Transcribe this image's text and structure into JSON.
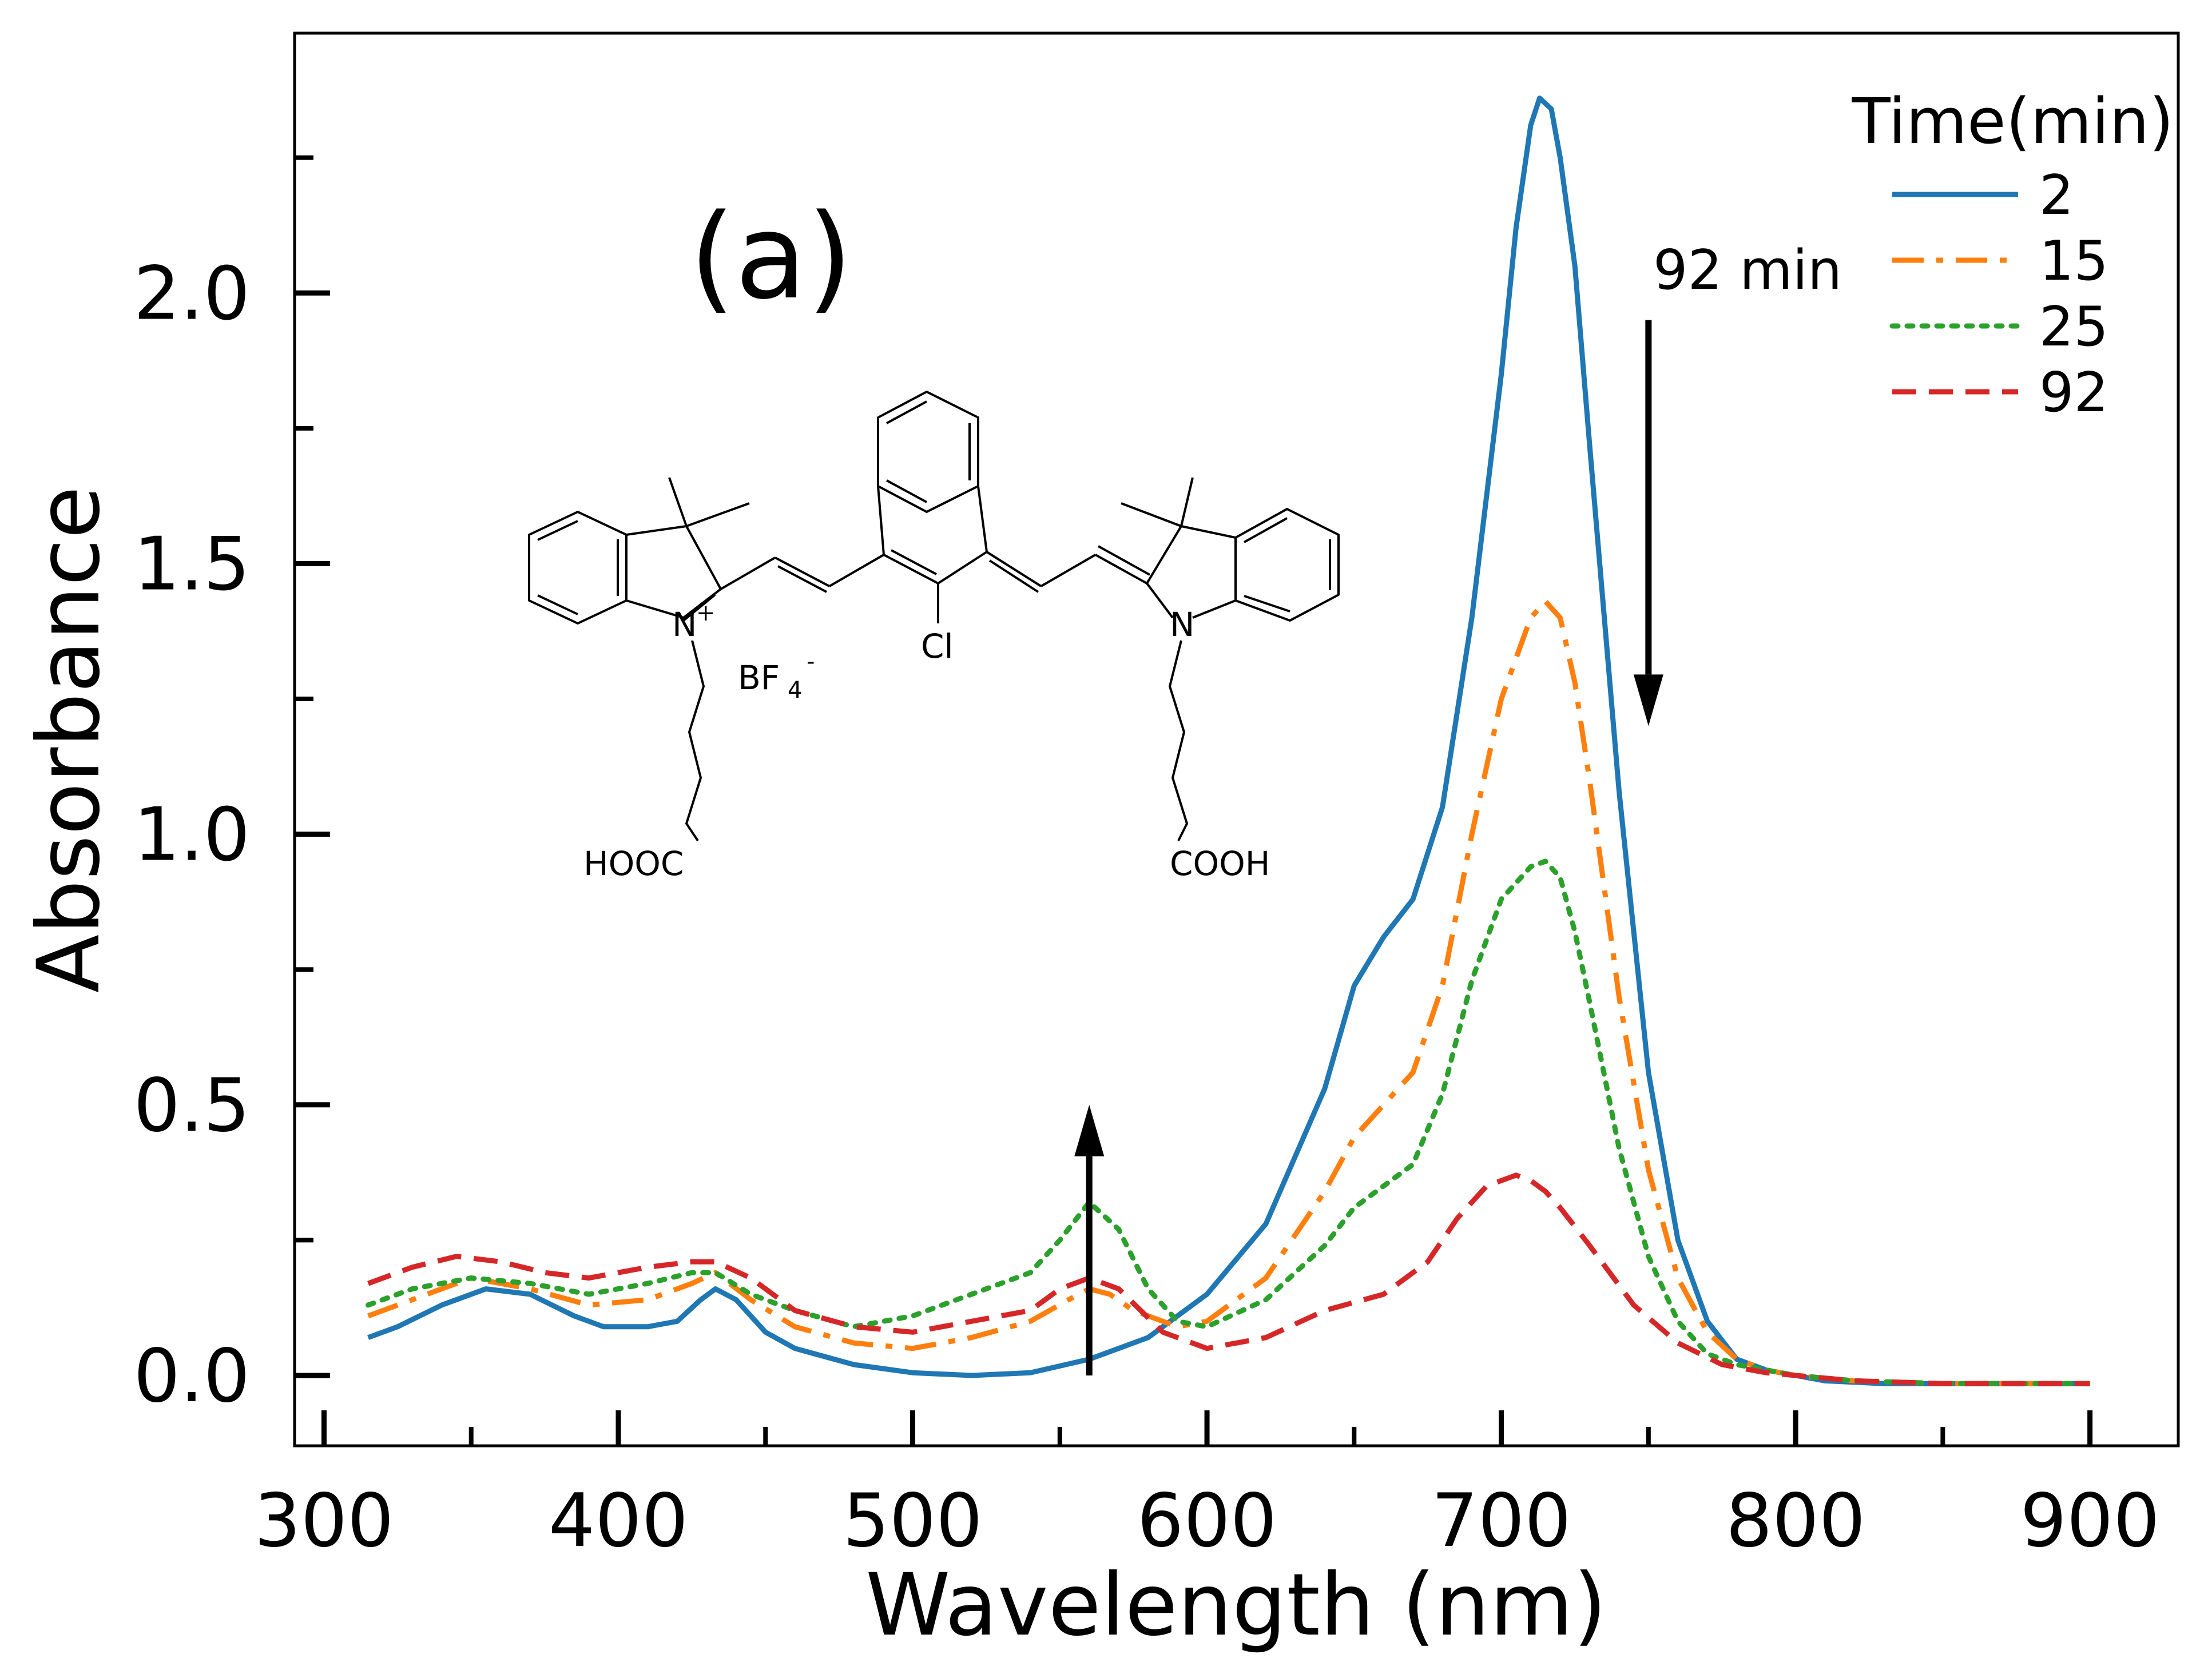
{
  "chart_data": {
    "type": "line",
    "panel_label": "(a)",
    "xlabel": "Wavelength (nm)",
    "ylabel": "Absorbance",
    "xlim": [
      290,
      930
    ],
    "ylim": [
      -0.13,
      2.48
    ],
    "x_ticks": [
      300,
      400,
      500,
      600,
      700,
      800,
      900
    ],
    "y_ticks": [
      0.0,
      0.5,
      1.0,
      1.5,
      2.0
    ],
    "x_tick_labels": [
      "300",
      "400",
      "500",
      "600",
      "700",
      "800",
      "900"
    ],
    "y_tick_labels": [
      "0.0",
      "0.5",
      "1.0",
      "1.5",
      "2.0"
    ],
    "legend": {
      "title": "Time(min)",
      "location": "top-right"
    },
    "annotations": [
      {
        "text": "92 min",
        "arrow": "down",
        "x": 750,
        "y_from": 1.95,
        "y_to": 1.2
      },
      {
        "text": "",
        "arrow": "up",
        "x": 560,
        "y_from": 0.0,
        "y_to": 0.5
      }
    ],
    "inset_structure_labels": {
      "n_plus": "N",
      "plus": "+",
      "n": "N",
      "cl": "Cl",
      "bf": "BF",
      "bf_sub": "4",
      "bf_sup": "-",
      "hooc": "HOOC",
      "cooh": "COOH"
    },
    "series": [
      {
        "name": "2",
        "color": "#1f77b4",
        "linestyle": "solid",
        "x": [
          315,
          325,
          340,
          355,
          370,
          385,
          395,
          410,
          420,
          428,
          433,
          440,
          450,
          460,
          480,
          500,
          520,
          540,
          560,
          580,
          600,
          620,
          640,
          650,
          660,
          670,
          680,
          690,
          700,
          705,
          710,
          713,
          717,
          720,
          725,
          730,
          740,
          750,
          760,
          770,
          780,
          790,
          800,
          810,
          830,
          860,
          900
        ],
        "y": [
          0.07,
          0.09,
          0.13,
          0.16,
          0.15,
          0.11,
          0.09,
          0.09,
          0.1,
          0.14,
          0.16,
          0.14,
          0.08,
          0.05,
          0.02,
          0.005,
          0.0,
          0.005,
          0.03,
          0.07,
          0.15,
          0.28,
          0.53,
          0.72,
          0.81,
          0.88,
          1.05,
          1.4,
          1.85,
          2.12,
          2.31,
          2.36,
          2.34,
          2.25,
          2.05,
          1.72,
          1.08,
          0.56,
          0.25,
          0.1,
          0.03,
          0.01,
          0.0,
          -0.01,
          -0.015,
          -0.015,
          -0.015
        ]
      },
      {
        "name": "15",
        "color": "#ff7f0e",
        "linestyle": "dashdot",
        "x": [
          315,
          330,
          350,
          370,
          390,
          410,
          425,
          433,
          445,
          460,
          480,
          500,
          520,
          540,
          553,
          560,
          567,
          575,
          590,
          600,
          620,
          640,
          650,
          660,
          670,
          680,
          690,
          700,
          710,
          715,
          720,
          725,
          730,
          740,
          750,
          760,
          770,
          780,
          790,
          800,
          820,
          850,
          900
        ],
        "y": [
          0.11,
          0.14,
          0.18,
          0.16,
          0.13,
          0.14,
          0.17,
          0.19,
          0.14,
          0.09,
          0.06,
          0.05,
          0.07,
          0.1,
          0.14,
          0.16,
          0.15,
          0.12,
          0.09,
          0.1,
          0.18,
          0.34,
          0.44,
          0.5,
          0.56,
          0.72,
          1.0,
          1.25,
          1.4,
          1.43,
          1.4,
          1.28,
          1.1,
          0.7,
          0.38,
          0.18,
          0.08,
          0.03,
          0.01,
          0.0,
          -0.01,
          -0.015,
          -0.015
        ]
      },
      {
        "name": "25",
        "color": "#2ca02c",
        "linestyle": "dotted",
        "x": [
          315,
          330,
          350,
          370,
          390,
          410,
          425,
          433,
          445,
          460,
          480,
          500,
          520,
          540,
          550,
          560,
          570,
          580,
          590,
          600,
          620,
          640,
          650,
          660,
          670,
          680,
          690,
          700,
          710,
          715,
          720,
          725,
          730,
          740,
          750,
          760,
          770,
          780,
          790,
          800,
          820,
          850,
          900
        ],
        "y": [
          0.13,
          0.16,
          0.18,
          0.17,
          0.15,
          0.17,
          0.19,
          0.19,
          0.15,
          0.12,
          0.09,
          0.11,
          0.15,
          0.19,
          0.25,
          0.32,
          0.27,
          0.16,
          0.1,
          0.09,
          0.14,
          0.24,
          0.31,
          0.35,
          0.39,
          0.52,
          0.73,
          0.88,
          0.94,
          0.95,
          0.92,
          0.82,
          0.69,
          0.42,
          0.22,
          0.1,
          0.04,
          0.02,
          0.01,
          0.0,
          -0.01,
          -0.015,
          -0.015
        ]
      },
      {
        "name": "92",
        "color": "#d62728",
        "linestyle": "dashed",
        "x": [
          315,
          330,
          345,
          360,
          375,
          390,
          410,
          425,
          433,
          445,
          460,
          480,
          500,
          520,
          540,
          550,
          560,
          570,
          585,
          600,
          620,
          640,
          660,
          675,
          685,
          695,
          705,
          710,
          715,
          720,
          730,
          745,
          760,
          775,
          790,
          800,
          820,
          850,
          900
        ],
        "y": [
          0.17,
          0.2,
          0.22,
          0.21,
          0.19,
          0.18,
          0.2,
          0.21,
          0.21,
          0.18,
          0.12,
          0.09,
          0.08,
          0.1,
          0.12,
          0.16,
          0.18,
          0.16,
          0.08,
          0.05,
          0.07,
          0.12,
          0.15,
          0.21,
          0.29,
          0.35,
          0.37,
          0.36,
          0.34,
          0.31,
          0.24,
          0.13,
          0.06,
          0.02,
          0.005,
          0.0,
          -0.01,
          -0.015,
          -0.015
        ]
      }
    ]
  }
}
